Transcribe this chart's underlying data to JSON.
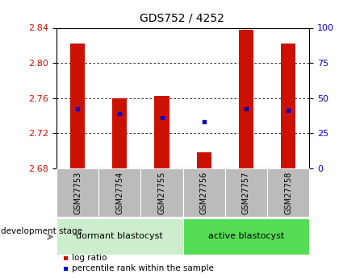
{
  "title": "GDS752 / 4252",
  "categories": [
    "GSM27753",
    "GSM27754",
    "GSM27755",
    "GSM27756",
    "GSM27757",
    "GSM27758"
  ],
  "bar_bottoms": [
    2.68,
    2.68,
    2.68,
    2.68,
    2.68,
    2.68
  ],
  "bar_tops": [
    2.822,
    2.76,
    2.762,
    2.698,
    2.838,
    2.822
  ],
  "blue_dot_y": [
    2.748,
    2.742,
    2.738,
    2.733,
    2.748,
    2.746
  ],
  "ylim_left": [
    2.68,
    2.84
  ],
  "ylim_right": [
    0,
    100
  ],
  "yticks_left": [
    2.68,
    2.72,
    2.76,
    2.8,
    2.84
  ],
  "yticks_right": [
    0,
    25,
    50,
    75,
    100
  ],
  "bar_color": "#CC1100",
  "dot_color": "#0000CC",
  "bar_width": 0.35,
  "bg_plot": "#FFFFFF",
  "group1_label": "dormant blastocyst",
  "group2_label": "active blastocyst",
  "group1_color": "#CCEECC",
  "group2_color": "#55DD55",
  "dev_stage_label": "development stage",
  "legend_bar_label": "log ratio",
  "legend_dot_label": "percentile rank within the sample",
  "left_label_color": "#CC1100",
  "right_label_color": "#0000CC",
  "cat_box_color": "#BBBBBB",
  "title_fontsize": 10,
  "tick_fontsize": 8,
  "cat_fontsize": 7,
  "grp_fontsize": 8,
  "legend_fontsize": 7.5
}
